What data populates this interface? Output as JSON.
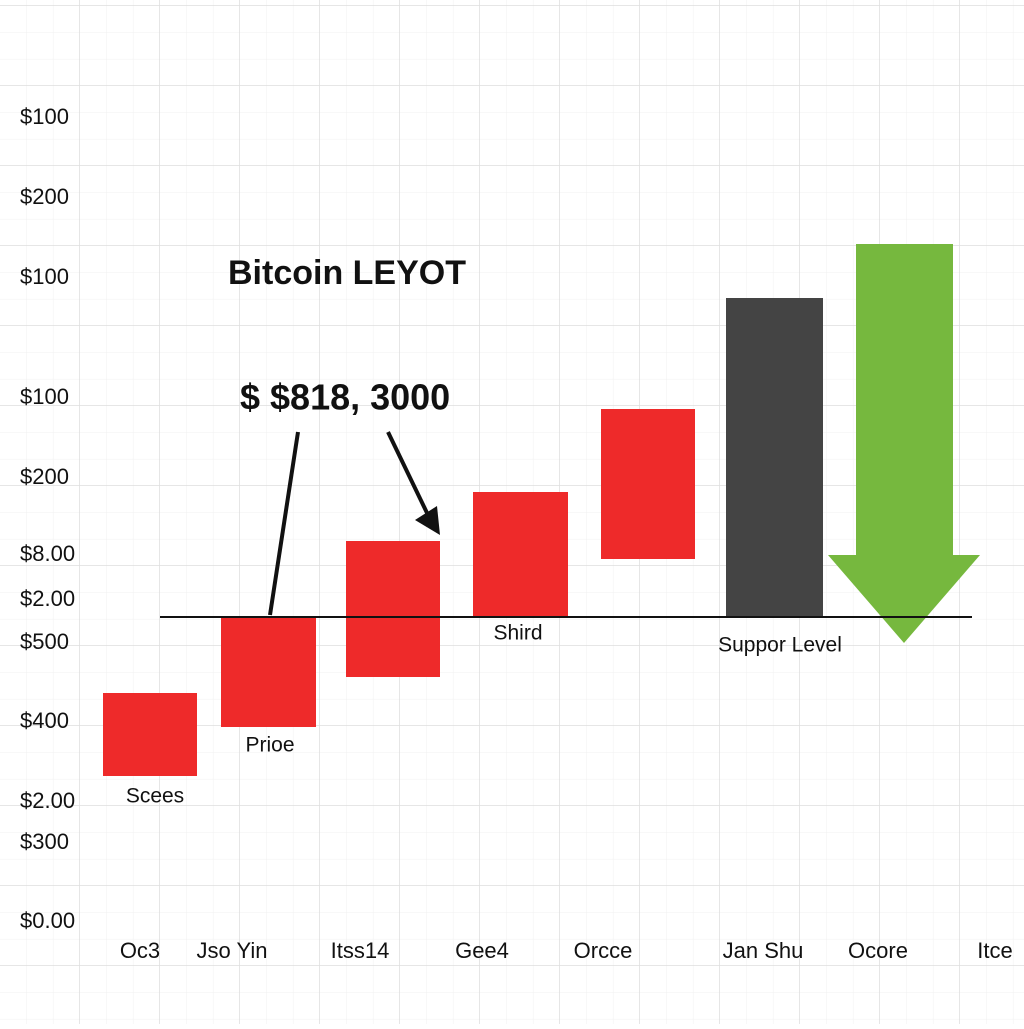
{
  "title": "Bitcoin LEYOT",
  "annotation": "$ $818, 3000",
  "y_labels": [
    "$100",
    "$200",
    "$100",
    "$100",
    "$200",
    "$8.00",
    "$2.00",
    "$500",
    "$400",
    "$2.00",
    "$300",
    "$0.00"
  ],
  "x_labels": [
    "Oc3",
    "Jso Yin",
    "Itss14",
    "Gee4",
    "Orcce",
    "Jan Shu",
    "Ocore",
    "Itce"
  ],
  "bar_labels": [
    "Scees",
    "Prioe",
    "Shird",
    "Suppor Level"
  ]
}
